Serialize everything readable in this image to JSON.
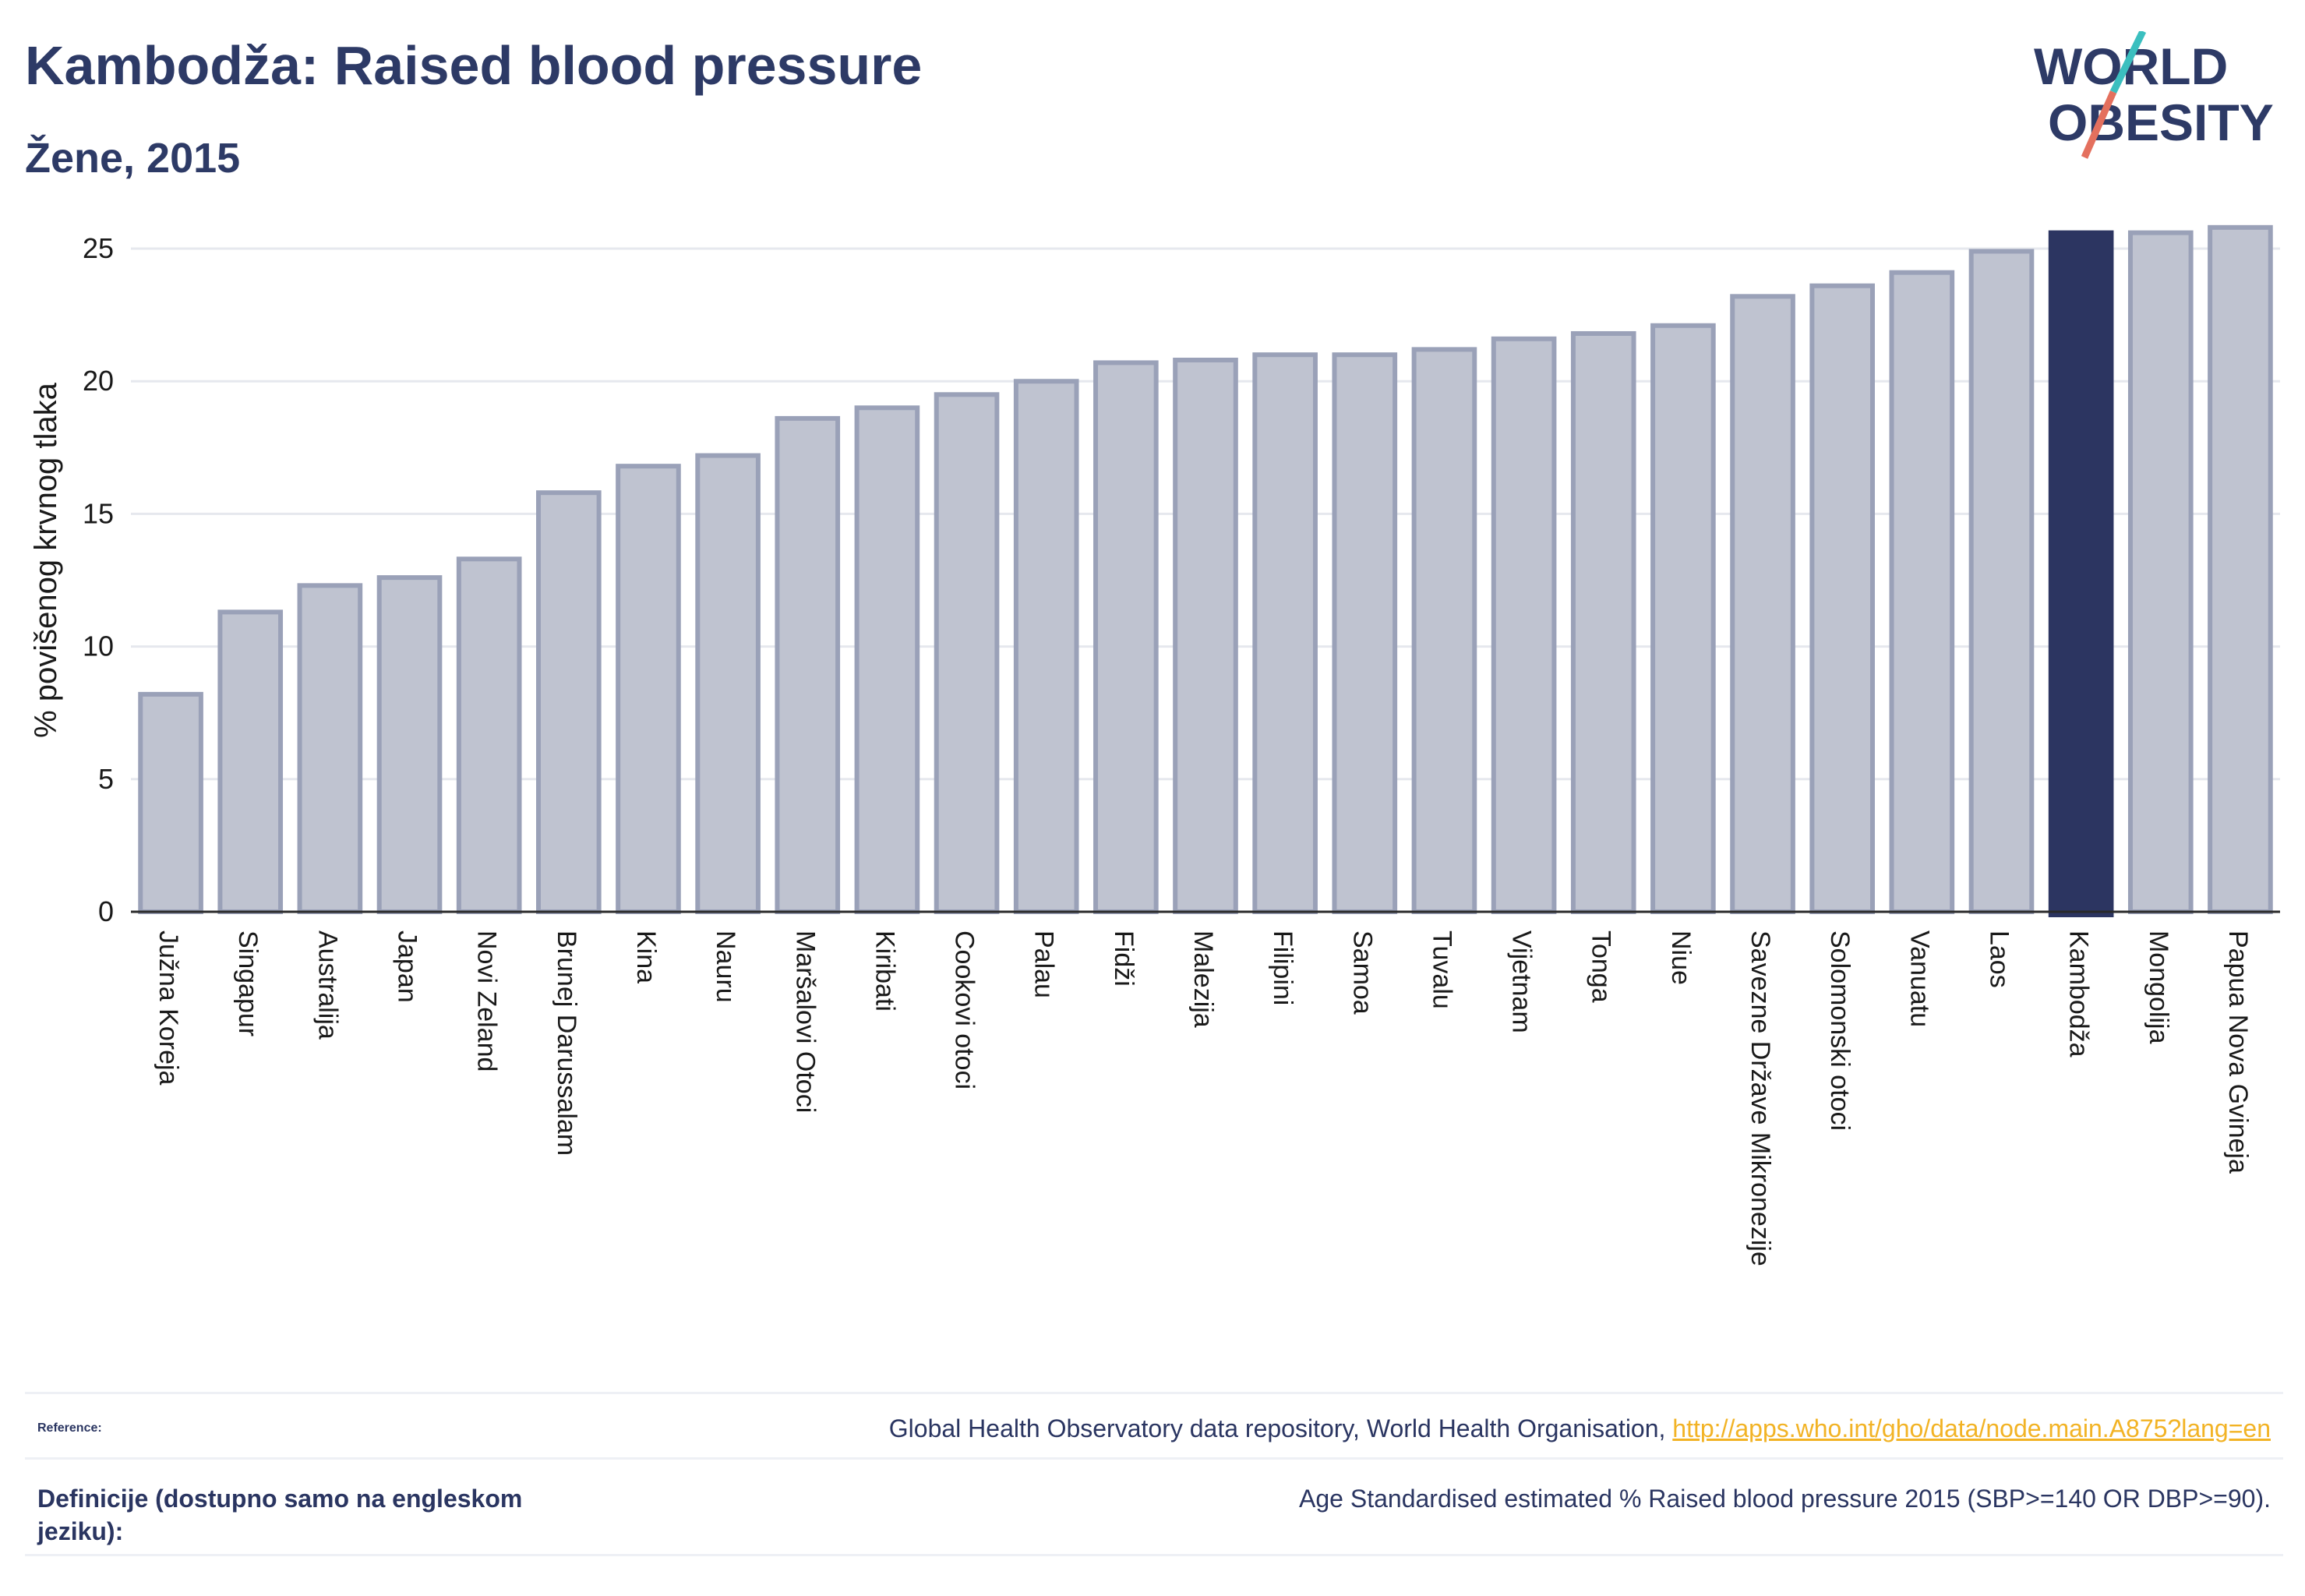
{
  "title": "Kambodža: Raised blood pressure",
  "subtitle": "Žene, 2015",
  "logo": {
    "line1": "WORLD",
    "line2": "OBESITY"
  },
  "colors": {
    "bar": "#bfc3d0",
    "bar_border": "#9aa1b8",
    "highlight": "#2c3561",
    "text": "#2d3a66",
    "link": "#f2b325",
    "grid": "#e6e8ee"
  },
  "chart_data": {
    "type": "bar",
    "ylabel": "% povišenog krvnog tlaka",
    "ylim": [
      0,
      26.5
    ],
    "yticks": [
      0,
      5,
      10,
      15,
      20,
      25
    ],
    "grid": true,
    "highlight": "Kambodža",
    "categories": [
      "Južna Koreja",
      "Singapur",
      "Australija",
      "Japan",
      "Novi Zeland",
      "Brunej Darussalam",
      "Kina",
      "Nauru",
      "Maršalovi Otoci",
      "Kiribati",
      "Cookovi otoci",
      "Palau",
      "Fidži",
      "Malezija",
      "Filipini",
      "Samoa",
      "Tuvalu",
      "Vijetnam",
      "Tonga",
      "Niue",
      "Savezne Države Mikronezije",
      "Solomonski otoci",
      "Vanuatu",
      "Laos",
      "Kambodža",
      "Mongolija",
      "Papua Nova Gvineja"
    ],
    "values": [
      8.2,
      11.3,
      12.3,
      12.6,
      13.3,
      15.8,
      16.8,
      17.2,
      18.6,
      19.0,
      19.5,
      20.0,
      20.7,
      20.8,
      21.0,
      21.0,
      21.2,
      21.6,
      21.8,
      22.1,
      23.2,
      23.6,
      24.1,
      24.9,
      25.6,
      25.6,
      25.8
    ]
  },
  "footer": {
    "reference_label": "Reference:",
    "reference_text": "Global Health Observatory data repository, World Health Organisation, ",
    "reference_link": "http://apps.who.int/gho/data/node.main.A875?lang=en",
    "definition_label": "Definicije (dostupno samo na engleskom jeziku):",
    "definition_text": "Age Standardised estimated % Raised blood pressure 2015 (SBP>=140 OR DBP>=90)."
  }
}
